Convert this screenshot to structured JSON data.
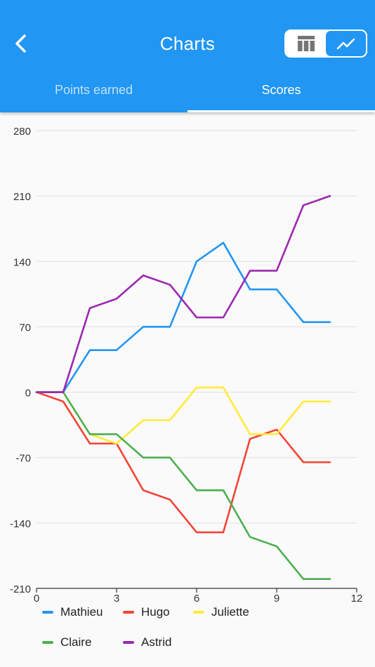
{
  "appbar": {
    "title": "Charts",
    "back_icon": "chevron-left-icon",
    "toggle": [
      {
        "icon": "table-icon",
        "active": false
      },
      {
        "icon": "line-chart-icon",
        "active": true
      }
    ]
  },
  "tabs": [
    {
      "label": "Points earned",
      "active": false
    },
    {
      "label": "Scores",
      "active": true
    }
  ],
  "colors": {
    "primary": "#2196f3",
    "Mathieu": "#2196f3",
    "Hugo": "#f44336",
    "Juliette": "#ffeb3b",
    "Claire": "#4caf50",
    "Astrid": "#9c27b0"
  },
  "chart_data": {
    "type": "line",
    "x": [
      0,
      1,
      2,
      3,
      4,
      5,
      6,
      7,
      8,
      9,
      10,
      11
    ],
    "xlim": [
      0,
      12
    ],
    "ylim": [
      -210,
      280
    ],
    "xticks": [
      "0",
      "3",
      "6",
      "9",
      "12"
    ],
    "yticks": [
      "280",
      "210",
      "140",
      "70",
      "0",
      "-70",
      "-140",
      "-210"
    ],
    "grid": true,
    "legend": "bottom",
    "series": [
      {
        "name": "Mathieu",
        "color": "#2196f3",
        "values": [
          0,
          0,
          45,
          45,
          70,
          70,
          140,
          160,
          110,
          110,
          75,
          75
        ]
      },
      {
        "name": "Hugo",
        "color": "#f44336",
        "values": [
          0,
          -10,
          -55,
          -55,
          -105,
          -115,
          -150,
          -150,
          -50,
          -40,
          -75,
          -75
        ]
      },
      {
        "name": "Juliette",
        "color": "#ffeb3b",
        "values": [
          0,
          0,
          -45,
          -55,
          -30,
          -30,
          5,
          5,
          -45,
          -45,
          -10,
          -10
        ]
      },
      {
        "name": "Claire",
        "color": "#4caf50",
        "values": [
          0,
          0,
          -45,
          -45,
          -70,
          -70,
          -105,
          -105,
          -155,
          -165,
          -200,
          -200
        ]
      },
      {
        "name": "Astrid",
        "color": "#9c27b0",
        "values": [
          0,
          0,
          90,
          100,
          125,
          115,
          80,
          80,
          130,
          130,
          200,
          210
        ]
      }
    ]
  }
}
